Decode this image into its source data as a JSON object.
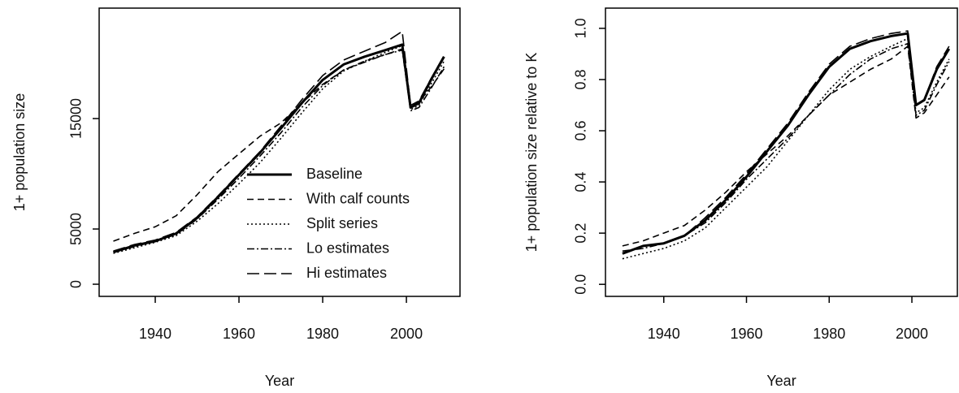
{
  "chart_data": [
    {
      "type": "line",
      "xlabel": "Year",
      "ylabel": "1+ population size",
      "x": [
        1930,
        1935,
        1940,
        1945,
        1950,
        1955,
        1960,
        1965,
        1970,
        1975,
        1980,
        1985,
        1990,
        1995,
        1999,
        2001,
        2003,
        2006,
        2009
      ],
      "xlim": [
        1926.6,
        2012.8
      ],
      "xticks": [
        1940,
        1960,
        1980,
        2000
      ],
      "ylim": [
        -1100,
        25000
      ],
      "yticks": [
        0,
        5000,
        15000
      ],
      "legend": "bottom-right",
      "series": [
        {
          "name": "Baseline",
          "color": "#000000",
          "linestyle": "solid",
          "values": [
            2900,
            3500,
            3900,
            4600,
            6000,
            7900,
            9900,
            11900,
            14100,
            16400,
            18500,
            19900,
            20600,
            21200,
            21700,
            16000,
            16400,
            18600,
            20600
          ]
        },
        {
          "name": "With calf counts",
          "color": "#000000",
          "linestyle": "dashed",
          "values": [
            3900,
            4600,
            5200,
            6200,
            8100,
            10200,
            11800,
            13400,
            14600,
            16400,
            18100,
            19400,
            20200,
            20800,
            21300,
            16200,
            16500,
            17900,
            19500
          ]
        },
        {
          "name": "Split series",
          "color": "#000000",
          "linestyle": "dotted",
          "values": [
            2800,
            3300,
            3800,
            4400,
            5700,
            7300,
            9100,
            11000,
            13200,
            15500,
            17700,
            19300,
            20200,
            21000,
            21600,
            15800,
            16200,
            18200,
            20200
          ]
        },
        {
          "name": "Lo estimates",
          "color": "#000000",
          "linestyle": "dashdot",
          "values": [
            2900,
            3400,
            3900,
            4500,
            5900,
            7700,
            9600,
            11600,
            13700,
            16000,
            18000,
            19400,
            20100,
            20800,
            21200,
            15700,
            16000,
            17800,
            19700
          ]
        },
        {
          "name": "Hi estimates",
          "color": "#000000",
          "linestyle": "longdash",
          "values": [
            3000,
            3600,
            4000,
            4700,
            6100,
            8000,
            10000,
            12000,
            14300,
            16700,
            18900,
            20300,
            21100,
            21900,
            22900,
            16200,
            16600,
            18700,
            20700
          ]
        }
      ]
    },
    {
      "type": "line",
      "xlabel": "Year",
      "ylabel": "1+ population size relative to K",
      "x": [
        1930,
        1935,
        1940,
        1945,
        1950,
        1955,
        1960,
        1965,
        1970,
        1975,
        1980,
        1985,
        1990,
        1995,
        1999,
        2001,
        2003,
        2006,
        2009
      ],
      "xlim": [
        1925.9,
        2011.0
      ],
      "xticks": [
        1940,
        1960,
        1980,
        2000
      ],
      "ylim": [
        -0.047,
        1.079
      ],
      "yticks": [
        {
          "value": 0,
          "label": "0.0"
        },
        0.2,
        0.4,
        0.6,
        0.8,
        {
          "value": 1,
          "label": "1.0"
        }
      ],
      "series": [
        {
          "color": "#000000",
          "linestyle": "solid",
          "values": [
            0.12,
            0.15,
            0.16,
            0.19,
            0.25,
            0.33,
            0.42,
            0.52,
            0.62,
            0.74,
            0.85,
            0.92,
            0.95,
            0.97,
            0.98,
            0.7,
            0.72,
            0.84,
            0.92
          ]
        },
        {
          "color": "#000000",
          "linestyle": "dashed",
          "values": [
            0.15,
            0.17,
            0.2,
            0.23,
            0.29,
            0.36,
            0.44,
            0.51,
            0.58,
            0.66,
            0.74,
            0.79,
            0.84,
            0.88,
            0.93,
            0.65,
            0.67,
            0.74,
            0.81
          ]
        },
        {
          "color": "#000000",
          "linestyle": "dotted",
          "values": [
            0.1,
            0.12,
            0.14,
            0.17,
            0.22,
            0.3,
            0.38,
            0.46,
            0.56,
            0.66,
            0.76,
            0.84,
            0.89,
            0.93,
            0.96,
            0.67,
            0.69,
            0.79,
            0.88
          ]
        },
        {
          "color": "#000000",
          "linestyle": "dashdot",
          "values": [
            0.13,
            0.14,
            0.16,
            0.19,
            0.24,
            0.32,
            0.41,
            0.49,
            0.57,
            0.66,
            0.74,
            0.82,
            0.88,
            0.92,
            0.94,
            0.66,
            0.68,
            0.78,
            0.87
          ]
        },
        {
          "color": "#000000",
          "linestyle": "longdash",
          "values": [
            0.12,
            0.15,
            0.16,
            0.19,
            0.26,
            0.34,
            0.43,
            0.53,
            0.63,
            0.75,
            0.86,
            0.93,
            0.96,
            0.98,
            0.99,
            0.7,
            0.72,
            0.85,
            0.93
          ]
        }
      ]
    }
  ]
}
